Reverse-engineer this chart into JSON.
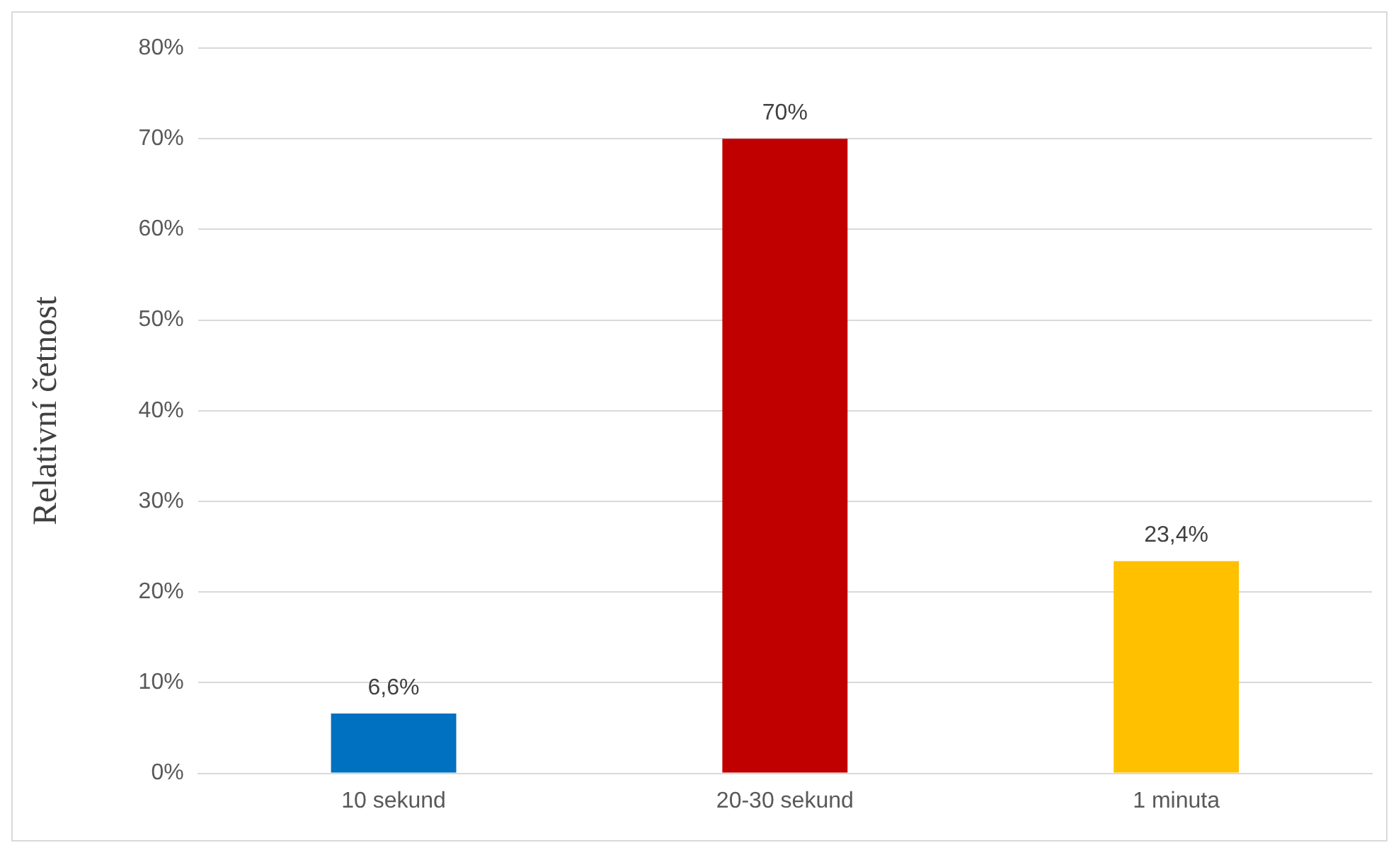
{
  "chart_data": {
    "type": "bar",
    "ylabel": "Relativní četnost",
    "categories": [
      "10 sekund",
      "20-30 sekund",
      "1 minuta"
    ],
    "values": [
      6.6,
      70,
      23.4
    ],
    "colors": [
      "#0070c0",
      "#c00000",
      "#ffc000"
    ],
    "value_labels": [
      "6,6%",
      "70%",
      "23,4%"
    ],
    "ylim": [
      0,
      80
    ],
    "yticks": [
      {
        "value": 0,
        "label": "0%"
      },
      {
        "value": 10,
        "label": "10%"
      },
      {
        "value": 20,
        "label": "20%"
      },
      {
        "value": 30,
        "label": "30%"
      },
      {
        "value": 40,
        "label": "40%"
      },
      {
        "value": 50,
        "label": "50%"
      },
      {
        "value": 60,
        "label": "60%"
      },
      {
        "value": 70,
        "label": "70%"
      },
      {
        "value": 80,
        "label": "80%"
      }
    ],
    "grid": "y",
    "legend": false
  }
}
